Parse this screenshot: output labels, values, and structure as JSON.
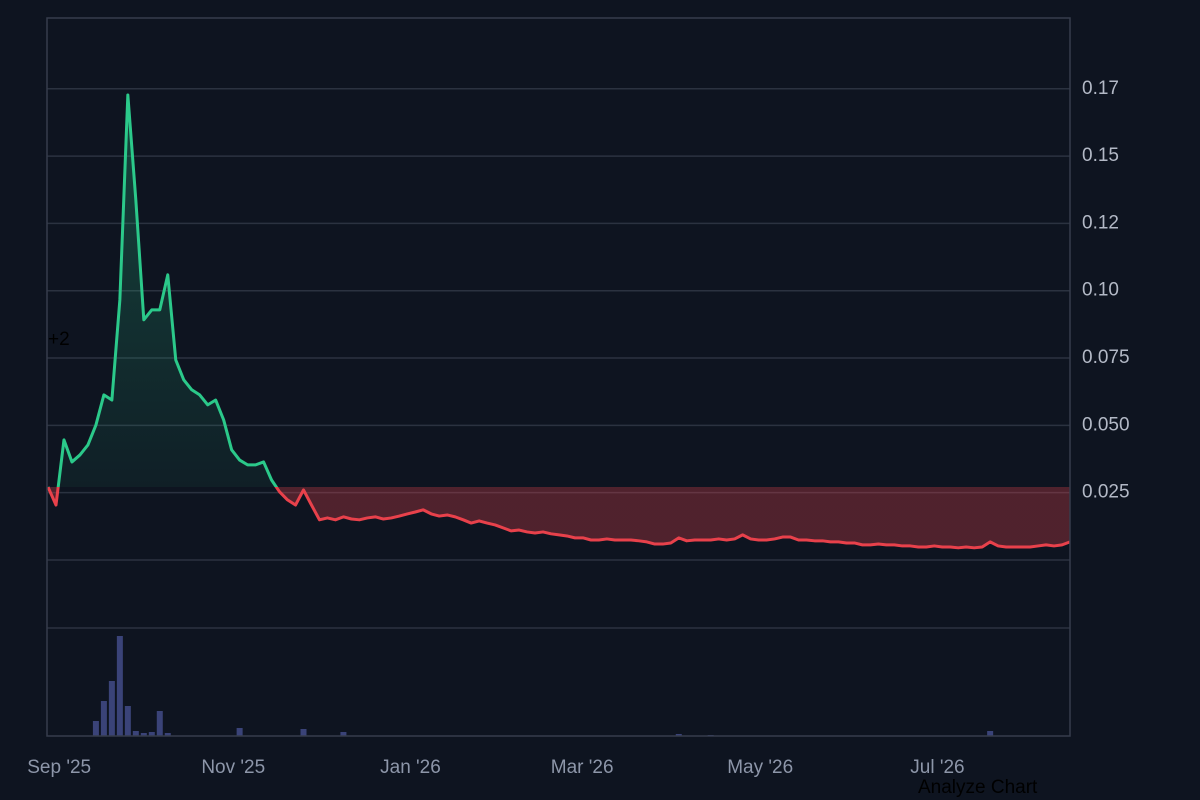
{
  "chart_data": {
    "type": "line",
    "annotation": "+2",
    "action": "Analyze Chart",
    "up_color": "#2bc98a",
    "down_color": "#e8414b",
    "volume_color": "#3a4378",
    "grid": true,
    "xlim": [
      0,
      128
    ],
    "xticks": [
      {
        "value": 1.4,
        "label": "Sep '25"
      },
      {
        "value": 23.2,
        "label": "Nov '25"
      },
      {
        "value": 45.4,
        "label": "Jan '26"
      },
      {
        "value": 66.9,
        "label": "Mar '26"
      },
      {
        "value": 89.2,
        "label": "May '26"
      },
      {
        "value": 111.4,
        "label": "Jul '26"
      }
    ],
    "ylim": [
      -0.0654,
      0.2013
    ],
    "yticks": [
      0.025,
      {
        "value": 0.05,
        "label": "0.050"
      },
      0.075,
      {
        "value": 0.1,
        "label": "0.10"
      },
      {
        "value": 0.125,
        "label": "0.12"
      },
      0.15,
      {
        "value": 0.175,
        "label": "0.17"
      }
    ],
    "values": [
      0.0271,
      0.0204,
      0.0446,
      0.0364,
      0.039,
      0.0427,
      0.0501,
      0.0613,
      0.0594,
      0.0966,
      0.1727,
      0.1337,
      0.0892,
      0.0929,
      0.0929,
      0.1059,
      0.0743,
      0.0669,
      0.0632,
      0.0613,
      0.0576,
      0.0594,
      0.052,
      0.0409,
      0.0371,
      0.0353,
      0.0353,
      0.0364,
      0.0297,
      0.0253,
      0.0223,
      0.0204,
      0.026,
      0.0204,
      0.0149,
      0.0156,
      0.0149,
      0.016,
      0.0152,
      0.0149,
      0.0156,
      0.016,
      0.0152,
      0.0156,
      0.0163,
      0.0171,
      0.0178,
      0.0186,
      0.0171,
      0.0163,
      0.0167,
      0.016,
      0.0149,
      0.0137,
      0.0145,
      0.0137,
      0.013,
      0.0119,
      0.0108,
      0.0111,
      0.0104,
      0.01,
      0.0104,
      0.0097,
      0.0093,
      0.0089,
      0.0082,
      0.0082,
      0.0074,
      0.0074,
      0.0078,
      0.0074,
      0.0074,
      0.0074,
      0.0071,
      0.0067,
      0.0059,
      0.0059,
      0.0063,
      0.0082,
      0.0071,
      0.0074,
      0.0074,
      0.0074,
      0.0078,
      0.0074,
      0.0078,
      0.0093,
      0.0078,
      0.0074,
      0.0074,
      0.0078,
      0.0085,
      0.0085,
      0.0074,
      0.0074,
      0.0071,
      0.0071,
      0.0067,
      0.0067,
      0.0063,
      0.0063,
      0.0056,
      0.0056,
      0.0059,
      0.0056,
      0.0056,
      0.0052,
      0.0052,
      0.0048,
      0.0048,
      0.0052,
      0.0048,
      0.0048,
      0.0045,
      0.0048,
      0.0045,
      0.0048,
      0.0067,
      0.0052,
      0.0048,
      0.0048,
      0.0048,
      0.0048,
      0.0052,
      0.0056,
      0.0052,
      0.0056,
      0.0067
    ],
    "volume": [
      0,
      0,
      0,
      0,
      0,
      0,
      15,
      35,
      55,
      100,
      30,
      5,
      3,
      4,
      25,
      3,
      0,
      0,
      0,
      0,
      0,
      0,
      0,
      0,
      8,
      0,
      0,
      0,
      0,
      0,
      0,
      0,
      7,
      0,
      0,
      0,
      0,
      4,
      0,
      0,
      0,
      0,
      0,
      0,
      0,
      0,
      0,
      0,
      0,
      0,
      0,
      0,
      0,
      0,
      0,
      0,
      0,
      0,
      0,
      0,
      0,
      0,
      0,
      0,
      0,
      0,
      0,
      0,
      0,
      0,
      0,
      0,
      0,
      0,
      0,
      0,
      0,
      0,
      0,
      2,
      0,
      0,
      0,
      1,
      0,
      0,
      0,
      0,
      0,
      0,
      0,
      0,
      0,
      0,
      0,
      0,
      0,
      0,
      0,
      0,
      0,
      0,
      0,
      0,
      0,
      0,
      0,
      0,
      0,
      0,
      0,
      0,
      0,
      0,
      0,
      0,
      0,
      0,
      5,
      0,
      0,
      0,
      0,
      0,
      0,
      0,
      0,
      0,
      0
    ]
  }
}
